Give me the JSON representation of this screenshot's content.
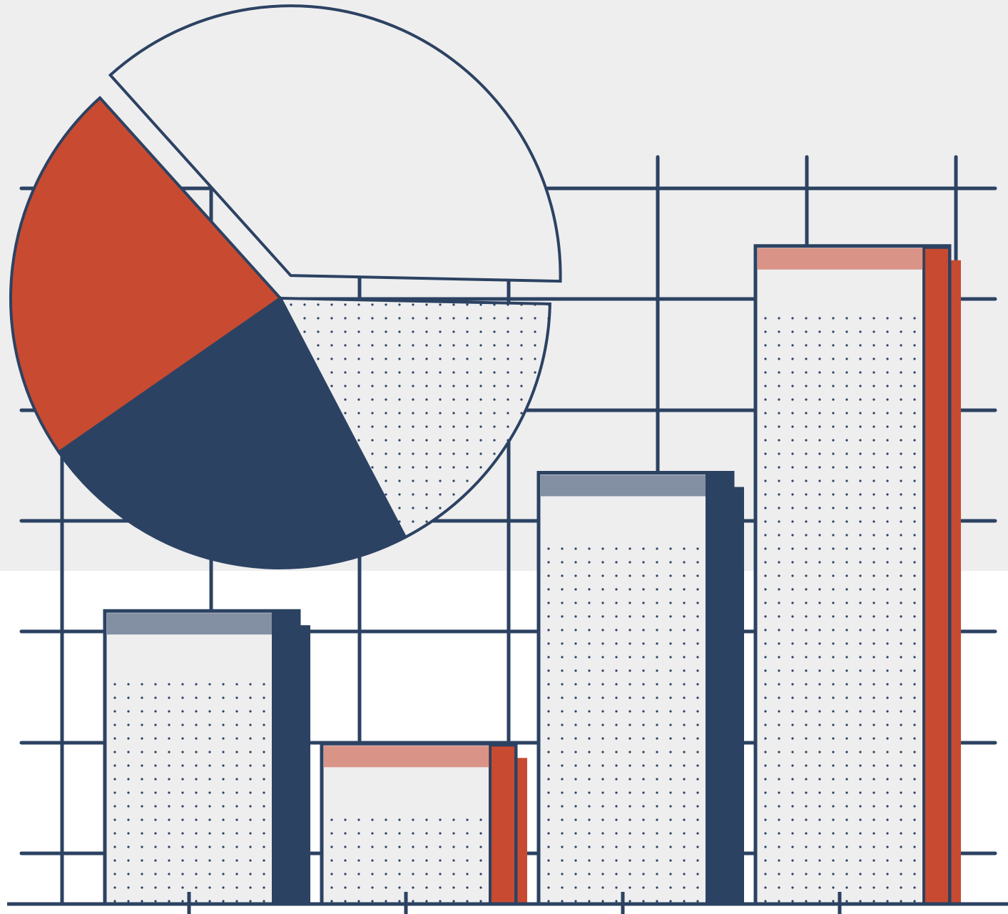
{
  "chart_data": [
    {
      "type": "pie",
      "values": [
        37,
        17,
        23,
        23
      ],
      "colors": [
        "#eeeeef",
        "#eeeeef",
        "#2c4262",
        "#c84b31"
      ],
      "explode": [
        1,
        0,
        0,
        0
      ]
    },
    {
      "type": "bar",
      "values": [
        2.65,
        1.45,
        3.9,
        5.95
      ],
      "colors": [
        "#2c4262",
        "#c84b31",
        "#2c4262",
        "#c84b31"
      ],
      "ylim": [
        0,
        7
      ]
    }
  ]
}
